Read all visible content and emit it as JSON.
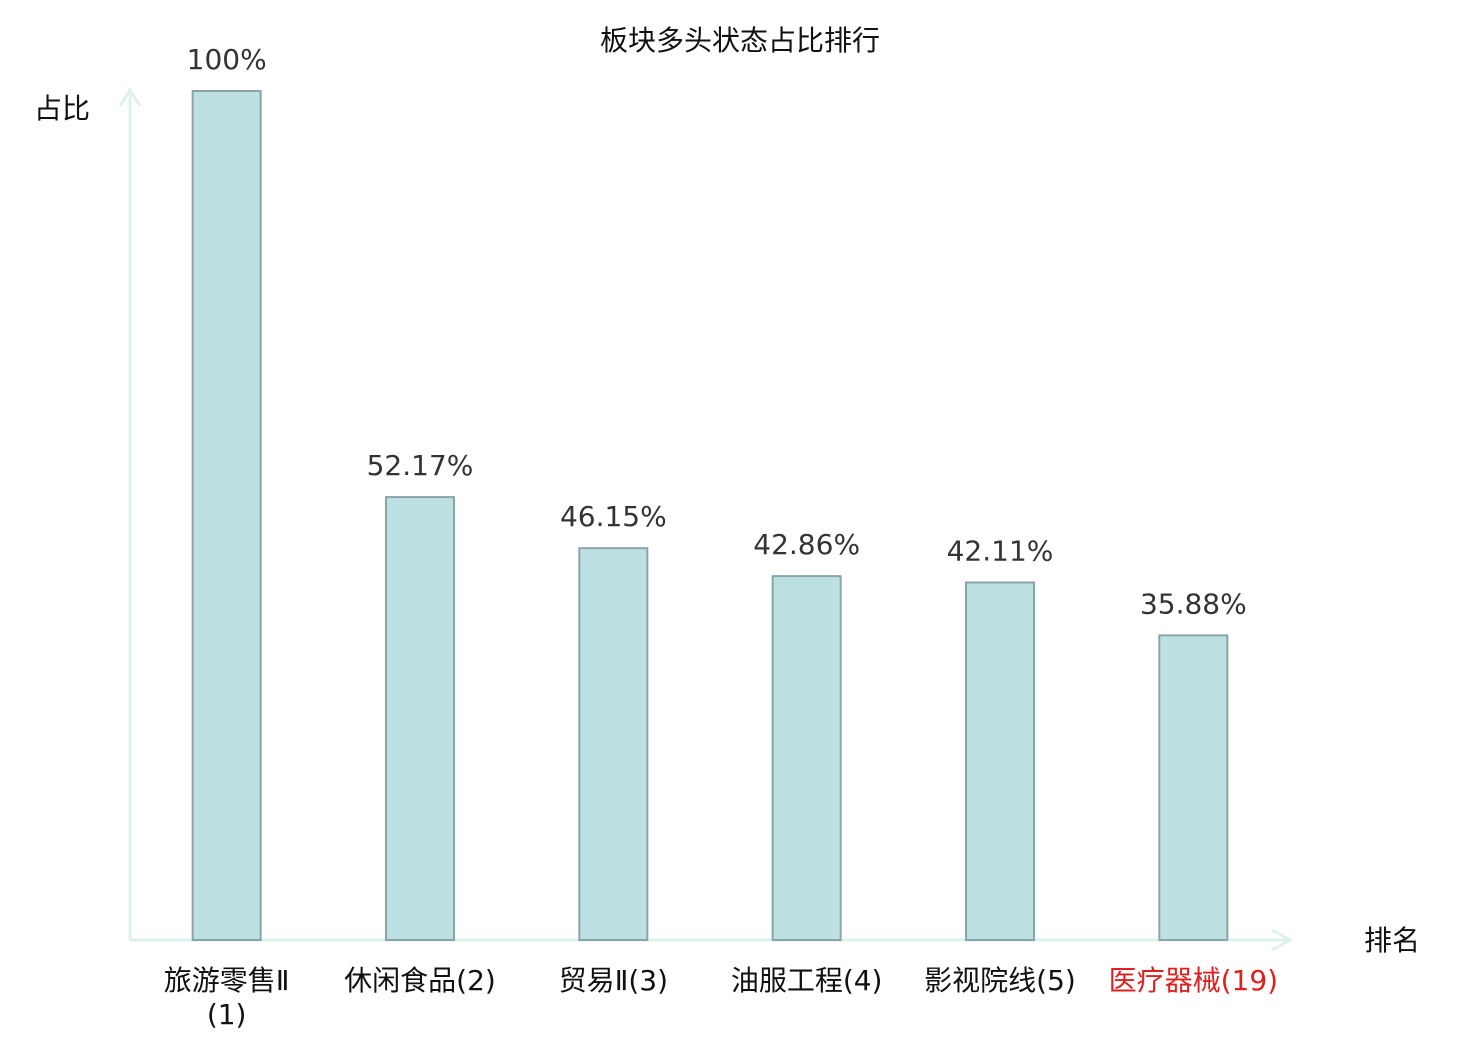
{
  "chart_data": {
    "type": "bar",
    "title": "板块多头状态占比排行",
    "y_label": "占比",
    "x_label": "排名",
    "categories": [
      "旅游零售Ⅱ(1)",
      "休闲食品(2)",
      "贸易Ⅱ(3)",
      "油服工程(4)",
      "影视院线(5)",
      "医疗器械(19)"
    ],
    "values": [
      100,
      52.17,
      46.15,
      42.86,
      42.11,
      35.88
    ],
    "value_labels": [
      "100%",
      "52.17%",
      "46.15%",
      "42.86%",
      "42.11%",
      "35.88%"
    ],
    "color": "#bde0e3",
    "label_colors": [
      "#111111",
      "#111111",
      "#111111",
      "#111111",
      "#111111",
      "#e02020"
    ],
    "ylim": [
      0,
      100
    ]
  }
}
